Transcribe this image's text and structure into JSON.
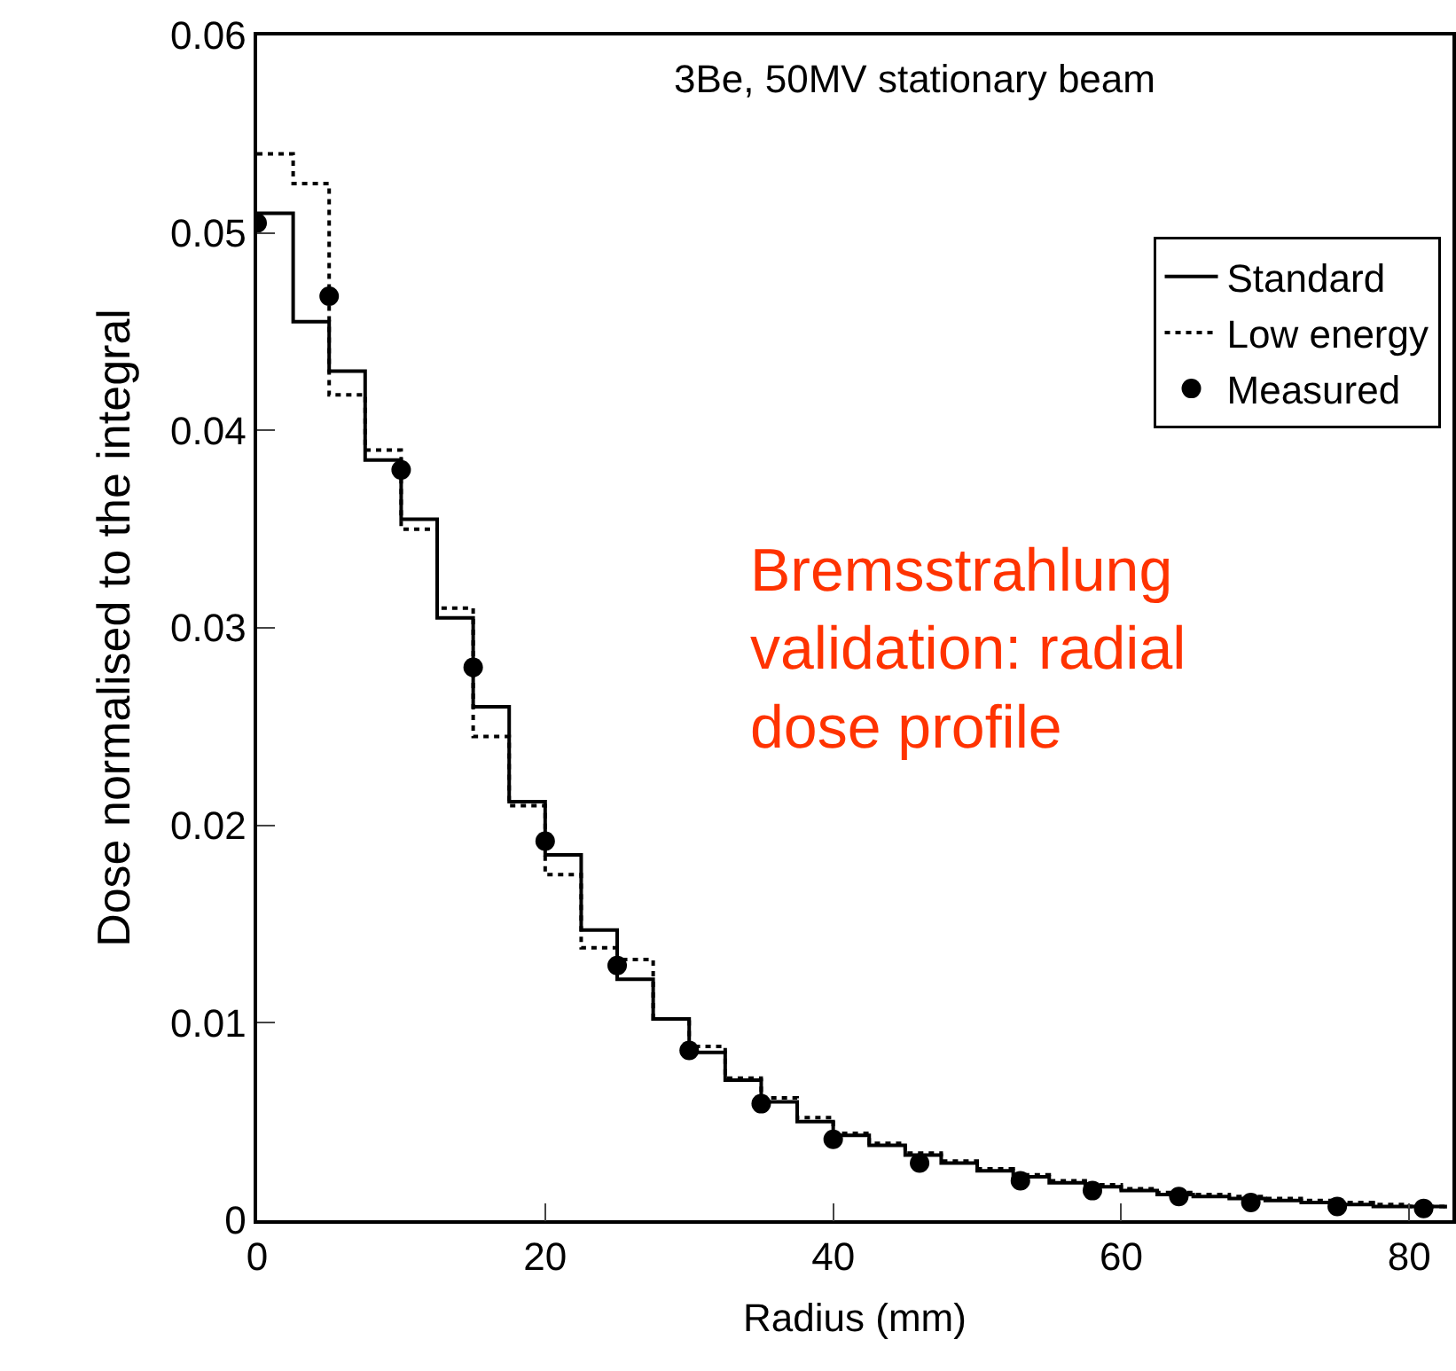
{
  "chart_data": {
    "type": "step",
    "title": "3Be, 50MV stationary beam",
    "xlabel": "Radius (mm)",
    "ylabel": "Dose normalised to the integral",
    "x": [
      0,
      2.5,
      5,
      7.5,
      10,
      12.5,
      15,
      17.5,
      20,
      22.5,
      25,
      27.5,
      30,
      32.5,
      35,
      37.5,
      40,
      42.5,
      45,
      47.5,
      50,
      52.5,
      55,
      57.5,
      60,
      62.5,
      65,
      67.5,
      70,
      72.5,
      75,
      77.5,
      80,
      82.5
    ],
    "series": [
      {
        "name": "Standard",
        "color": "#000000",
        "line_style": "solid",
        "values": [
          0.051,
          0.0455,
          0.043,
          0.0385,
          0.0355,
          0.0305,
          0.026,
          0.0212,
          0.0185,
          0.0147,
          0.0122,
          0.0102,
          0.0085,
          0.0071,
          0.006,
          0.005,
          0.0043,
          0.0038,
          0.0033,
          0.0029,
          0.0025,
          0.0022,
          0.0019,
          0.0017,
          0.0015,
          0.0013,
          0.0012,
          0.0011,
          0.001,
          0.0009,
          0.0008,
          0.0007,
          0.0007,
          0.0006
        ]
      },
      {
        "name": "Low energy",
        "color": "#000000",
        "line_style": "dotted",
        "values": [
          0.054,
          0.0525,
          0.0418,
          0.039,
          0.035,
          0.031,
          0.0245,
          0.021,
          0.0175,
          0.0138,
          0.0132,
          0.0102,
          0.0088,
          0.0072,
          0.0062,
          0.0052,
          0.0044,
          0.0039,
          0.0034,
          0.003,
          0.0026,
          0.0023,
          0.002,
          0.0018,
          0.0016,
          0.0014,
          0.0013,
          0.0012,
          0.0011,
          0.001,
          0.0009,
          0.0008,
          0.0007,
          0.0007
        ]
      },
      {
        "name": "Measured",
        "type": "scatter",
        "marker": "circle",
        "color": "#000000",
        "x": [
          0,
          5,
          10,
          15,
          20,
          25,
          30,
          35,
          40,
          46,
          53,
          58,
          64,
          69,
          75,
          81
        ],
        "values": [
          0.0505,
          0.0468,
          0.038,
          0.028,
          0.0192,
          0.0129,
          0.0086,
          0.0059,
          0.0041,
          0.0029,
          0.002,
          0.0015,
          0.0012,
          0.0009,
          0.0007,
          0.0006
        ]
      }
    ],
    "annotations": [
      "Bremsstrahlung validation: radial dose profile"
    ],
    "xlim": [
      0,
      83
    ],
    "ylim": [
      0,
      0.06
    ],
    "xticks": [
      0,
      20,
      40,
      60,
      80
    ],
    "yticks": [
      0,
      0.01,
      0.02,
      0.03,
      0.04,
      0.05,
      0.06
    ],
    "legend": "top right"
  }
}
